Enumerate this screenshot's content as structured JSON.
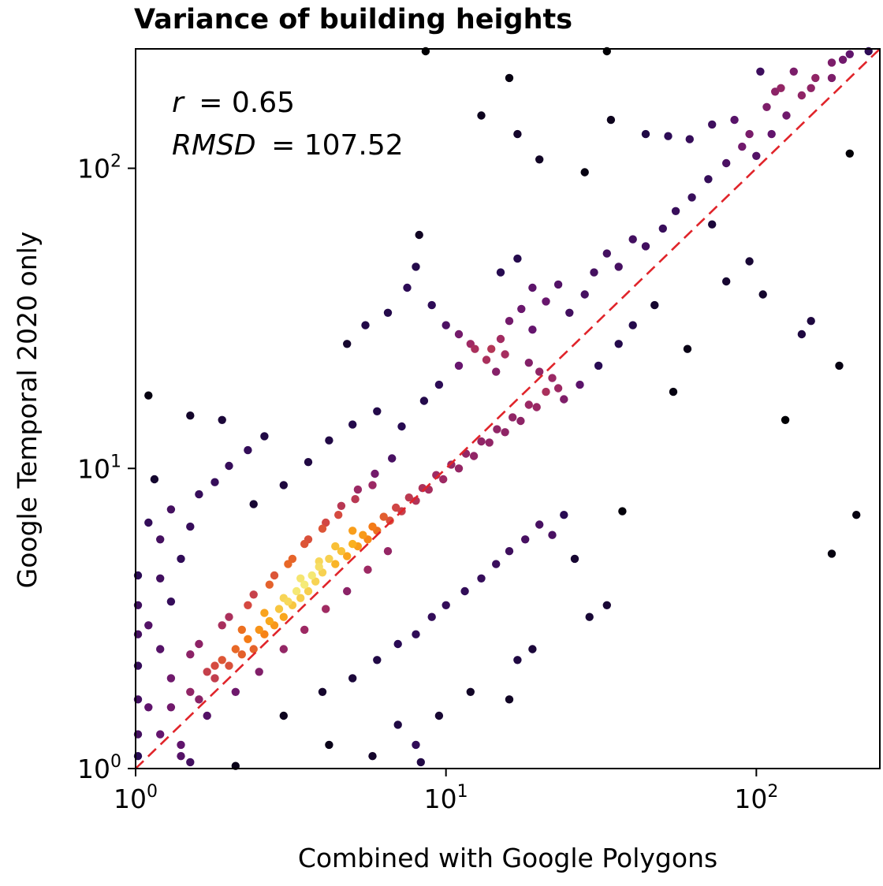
{
  "chart_data": {
    "type": "scatter",
    "title": "Variance of building heights",
    "xlabel": "Combined with Google Polygons",
    "ylabel": "Google Temporal 2020 only",
    "x_scale": "log",
    "y_scale": "log",
    "xlim": [
      1,
      250
    ],
    "ylim": [
      1,
      250
    ],
    "x_ticks": [
      {
        "value": 1,
        "base": "10",
        "exp": "0"
      },
      {
        "value": 10,
        "base": "10",
        "exp": "1"
      },
      {
        "value": 100,
        "base": "10",
        "exp": "2"
      }
    ],
    "y_ticks": [
      {
        "value": 1,
        "base": "10",
        "exp": "0"
      },
      {
        "value": 10,
        "base": "10",
        "exp": "1"
      },
      {
        "value": 100,
        "base": "10",
        "exp": "2"
      }
    ],
    "grid": false,
    "colormap": "inferno (point density)",
    "annotations": {
      "r_label": "r",
      "r_value": "= 0.65",
      "rmsd_label": "RMSD",
      "rmsd_value": "= 107.52"
    },
    "reference_line": {
      "style": "dashed",
      "color": "#e0242a",
      "x": [
        1,
        250
      ],
      "y": [
        1,
        250
      ]
    },
    "series": [
      {
        "color_by": "density",
        "points": [
          [
            1.2,
            1.3
          ],
          [
            1.3,
            1.6
          ],
          [
            1.5,
            1.8
          ],
          [
            1.6,
            1.7
          ],
          [
            1.7,
            2.1
          ],
          [
            1.8,
            2.0
          ],
          [
            1.9,
            2.3
          ],
          [
            2.0,
            2.2
          ],
          [
            2.1,
            2.5
          ],
          [
            2.2,
            2.4
          ],
          [
            2.3,
            2.7
          ],
          [
            2.4,
            2.5
          ],
          [
            2.5,
            2.9
          ],
          [
            2.6,
            2.8
          ],
          [
            2.7,
            3.1
          ],
          [
            2.8,
            3.0
          ],
          [
            2.9,
            3.4
          ],
          [
            3.0,
            3.2
          ],
          [
            3.1,
            3.6
          ],
          [
            3.2,
            3.5
          ],
          [
            3.3,
            3.9
          ],
          [
            3.4,
            3.7
          ],
          [
            3.5,
            4.1
          ],
          [
            3.6,
            3.9
          ],
          [
            3.7,
            4.4
          ],
          [
            3.8,
            4.2
          ],
          [
            3.9,
            4.7
          ],
          [
            4.0,
            4.5
          ],
          [
            4.2,
            5.0
          ],
          [
            4.4,
            4.8
          ],
          [
            4.6,
            5.3
          ],
          [
            4.8,
            5.1
          ],
          [
            5.0,
            5.6
          ],
          [
            5.2,
            5.5
          ],
          [
            5.4,
            6.0
          ],
          [
            5.6,
            5.8
          ],
          [
            5.8,
            6.4
          ],
          [
            6.0,
            6.2
          ],
          [
            6.3,
            6.9
          ],
          [
            6.6,
            6.7
          ],
          [
            6.9,
            7.4
          ],
          [
            7.2,
            7.2
          ],
          [
            7.6,
            8.0
          ],
          [
            8.0,
            7.8
          ],
          [
            8.4,
            8.6
          ],
          [
            8.8,
            8.5
          ],
          [
            9.3,
            9.5
          ],
          [
            9.8,
            9.2
          ],
          [
            10.4,
            10.3
          ],
          [
            11.0,
            10.0
          ],
          [
            11.6,
            11.2
          ],
          [
            12.3,
            11.0
          ],
          [
            13.0,
            12.3
          ],
          [
            13.8,
            12.2
          ],
          [
            14.6,
            13.5
          ],
          [
            15.5,
            13.2
          ],
          [
            16.4,
            14.8
          ],
          [
            17.4,
            14.4
          ],
          [
            18.5,
            16.3
          ],
          [
            19.6,
            16.0
          ],
          [
            2.0,
            3.2
          ],
          [
            2.4,
            3.8
          ],
          [
            2.8,
            4.4
          ],
          [
            3.2,
            5.0
          ],
          [
            3.6,
            5.8
          ],
          [
            4.1,
            6.6
          ],
          [
            4.6,
            7.5
          ],
          [
            5.2,
            8.5
          ],
          [
            5.9,
            9.6
          ],
          [
            6.7,
            10.8
          ],
          [
            1.6,
            2.6
          ],
          [
            1.9,
            3.0
          ],
          [
            2.3,
            3.5
          ],
          [
            2.7,
            4.1
          ],
          [
            3.1,
            4.8
          ],
          [
            3.5,
            5.6
          ],
          [
            4.0,
            6.3
          ],
          [
            4.5,
            7.0
          ],
          [
            5.1,
            7.9
          ],
          [
            5.8,
            8.8
          ],
          [
            1.4,
            1.2
          ],
          [
            1.7,
            1.5
          ],
          [
            2.1,
            1.8
          ],
          [
            2.5,
            2.1
          ],
          [
            3.0,
            2.5
          ],
          [
            3.5,
            2.9
          ],
          [
            4.1,
            3.4
          ],
          [
            4.8,
            3.9
          ],
          [
            5.6,
            4.6
          ],
          [
            6.5,
            5.3
          ],
          [
            1.3,
            2.0
          ],
          [
            1.5,
            2.4
          ],
          [
            1.8,
            2.2
          ],
          [
            2.2,
            2.9
          ],
          [
            2.6,
            3.3
          ],
          [
            3.0,
            3.7
          ],
          [
            3.4,
            4.3
          ],
          [
            3.9,
            4.9
          ],
          [
            4.4,
            5.5
          ],
          [
            5.0,
            6.2
          ],
          [
            1.1,
            1.6
          ],
          [
            1.2,
            2.5
          ],
          [
            1.1,
            3.0
          ],
          [
            1.3,
            3.6
          ],
          [
            1.2,
            4.3
          ],
          [
            1.4,
            5.0
          ],
          [
            1.2,
            5.8
          ],
          [
            1.1,
            6.6
          ],
          [
            1.5,
            6.4
          ],
          [
            1.3,
            7.3
          ],
          [
            1.6,
            8.2
          ],
          [
            1.8,
            9.0
          ],
          [
            2.0,
            10.2
          ],
          [
            2.3,
            11.5
          ],
          [
            2.6,
            12.8
          ],
          [
            1.9,
            14.5
          ],
          [
            1.5,
            15.0
          ],
          [
            1.1,
            17.5
          ],
          [
            1.15,
            9.2
          ],
          [
            2.4,
            7.6
          ],
          [
            3.0,
            8.8
          ],
          [
            3.6,
            10.5
          ],
          [
            4.2,
            12.4
          ],
          [
            5.0,
            14.0
          ],
          [
            6.0,
            15.5
          ],
          [
            7.2,
            13.8
          ],
          [
            8.5,
            16.8
          ],
          [
            9.5,
            19.0
          ],
          [
            11.0,
            22.0
          ],
          [
            12.4,
            25.0
          ],
          [
            13.5,
            23.0
          ],
          [
            14.5,
            21.0
          ],
          [
            15.0,
            27.0
          ],
          [
            16.0,
            31.0
          ],
          [
            17.5,
            34.0
          ],
          [
            19.0,
            29.0
          ],
          [
            21.0,
            36.0
          ],
          [
            23.0,
            41.0
          ],
          [
            25.0,
            33.0
          ],
          [
            28.0,
            38.0
          ],
          [
            30.0,
            45.0
          ],
          [
            33.0,
            52.0
          ],
          [
            36.0,
            47.0
          ],
          [
            40.0,
            58.0
          ],
          [
            44.0,
            55.0
          ],
          [
            50.0,
            63.0
          ],
          [
            55.0,
            72.0
          ],
          [
            62.0,
            80.0
          ],
          [
            70.0,
            92.0
          ],
          [
            80.0,
            104.0
          ],
          [
            90.0,
            118.0
          ],
          [
            100.0,
            110.0
          ],
          [
            112.0,
            130.0
          ],
          [
            125.0,
            150.0
          ],
          [
            140.0,
            175.0
          ],
          [
            155.0,
            200.0
          ],
          [
            175.0,
            225.0
          ],
          [
            200.0,
            240.0
          ],
          [
            120.0,
            185.0
          ],
          [
            108.0,
            160.0
          ],
          [
            3.0,
            1.5
          ],
          [
            4.0,
            1.8
          ],
          [
            5.0,
            2.0
          ],
          [
            6.0,
            2.3
          ],
          [
            7.0,
            2.6
          ],
          [
            8.0,
            2.8
          ],
          [
            9.0,
            3.2
          ],
          [
            10.0,
            3.5
          ],
          [
            11.5,
            3.9
          ],
          [
            13.0,
            4.3
          ],
          [
            14.5,
            4.8
          ],
          [
            16.0,
            5.3
          ],
          [
            18.0,
            5.8
          ],
          [
            20.0,
            6.5
          ],
          [
            22.0,
            6.0
          ],
          [
            24.0,
            7.0
          ],
          [
            26.0,
            5.0
          ],
          [
            29.0,
            3.2
          ],
          [
            33.0,
            3.5
          ],
          [
            37.0,
            7.2
          ],
          [
            7.0,
            1.4
          ],
          [
            8.0,
            1.2
          ],
          [
            9.5,
            1.5
          ],
          [
            12.0,
            1.8
          ],
          [
            16.0,
            1.7
          ],
          [
            17.0,
            2.3
          ],
          [
            19.0,
            2.5
          ],
          [
            8.3,
            1.05
          ],
          [
            5.8,
            1.1
          ],
          [
            4.2,
            1.2
          ],
          [
            2.1,
            1.02
          ],
          [
            1.5,
            1.05
          ],
          [
            1.4,
            1.1
          ],
          [
            1.0,
            1.3
          ],
          [
            1.0,
            1.7
          ],
          [
            1.0,
            2.2
          ],
          [
            1.0,
            2.8
          ],
          [
            1.0,
            3.5
          ],
          [
            1.0,
            4.4
          ],
          [
            1.0,
            1.1
          ],
          [
            8.6,
            250
          ],
          [
            13.0,
            150
          ],
          [
            16.0,
            200
          ],
          [
            17.0,
            130
          ],
          [
            20.0,
            107
          ],
          [
            28.0,
            97
          ],
          [
            33.0,
            250
          ],
          [
            34.0,
            145
          ],
          [
            44.0,
            130
          ],
          [
            52.0,
            128
          ],
          [
            61.0,
            125
          ],
          [
            72.0,
            140
          ],
          [
            85.0,
            145
          ],
          [
            95.0,
            130
          ],
          [
            103.0,
            210
          ],
          [
            115.0,
            180
          ],
          [
            132.0,
            210
          ],
          [
            150.0,
            185
          ],
          [
            175.0,
            200
          ],
          [
            200.0,
            112
          ],
          [
            190.0,
            230
          ],
          [
            230.0,
            250
          ],
          [
            210.0,
            7.0
          ],
          [
            175.0,
            5.2
          ],
          [
            185.0,
            22.0
          ],
          [
            140.0,
            28.0
          ],
          [
            150.0,
            31.0
          ],
          [
            124.0,
            14.5
          ],
          [
            105.0,
            38.0
          ],
          [
            95.0,
            49.0
          ],
          [
            80.0,
            42.0
          ],
          [
            72.0,
            65.0
          ],
          [
            60.0,
            25.0
          ],
          [
            54.0,
            18.0
          ],
          [
            47.0,
            35.0
          ],
          [
            40.0,
            30.0
          ],
          [
            36.0,
            26.0
          ],
          [
            31.0,
            22.0
          ],
          [
            27.0,
            19.0
          ],
          [
            24.0,
            17.0
          ],
          [
            21.0,
            18.0
          ],
          [
            22.0,
            20.0
          ],
          [
            20.0,
            21.0
          ],
          [
            23.0,
            18.5
          ],
          [
            18.5,
            22.5
          ],
          [
            15.5,
            24.0
          ],
          [
            14.0,
            25.0
          ],
          [
            12.0,
            26.0
          ],
          [
            11.0,
            28.0
          ],
          [
            9.0,
            35.0
          ],
          [
            7.5,
            40.0
          ],
          [
            6.5,
            33.0
          ],
          [
            5.5,
            30.0
          ],
          [
            4.8,
            26.0
          ],
          [
            10.0,
            30.0
          ],
          [
            8.0,
            47.0
          ],
          [
            8.2,
            60.0
          ],
          [
            15.0,
            45.0
          ],
          [
            17.0,
            50.0
          ],
          [
            19.0,
            40.0
          ]
        ]
      }
    ]
  }
}
